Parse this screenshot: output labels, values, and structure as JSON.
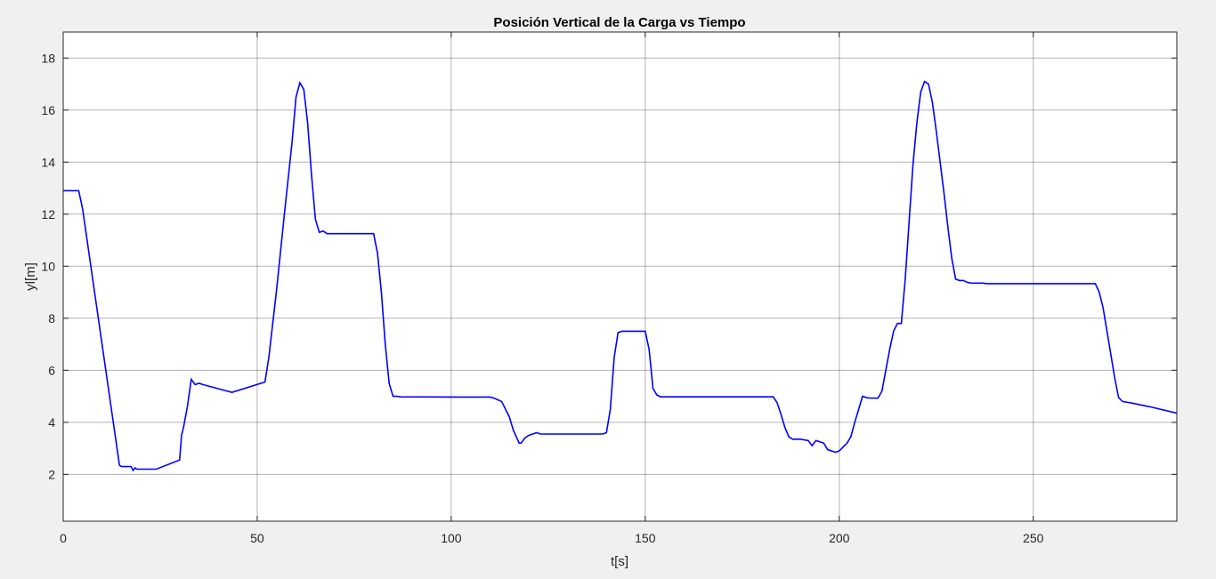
{
  "chart_data": {
    "type": "line",
    "title": "Posición Vertical de la Carga vs Tiempo",
    "xlabel": "t[s]",
    "ylabel": "yl[m]",
    "xlim": [
      0,
      287
    ],
    "ylim": [
      0.2,
      19
    ],
    "grid": true,
    "legend": "none",
    "x_ticks": [
      0,
      50,
      100,
      150,
      200,
      250
    ],
    "y_ticks": [
      2,
      4,
      6,
      8,
      10,
      12,
      14,
      16,
      18
    ],
    "colors": {
      "line": "#0000ff",
      "background": "#f0f0f0",
      "plot_area": "#ffffff",
      "grid": "#262626"
    },
    "series": [
      {
        "x": [
          0,
          4,
          5,
          14.5,
          15,
          17.5,
          18,
          18.5,
          19,
          24,
          30,
          30.5,
          31,
          32,
          33,
          34,
          35,
          36,
          43.5,
          52,
          53,
          55,
          57,
          59,
          60,
          61,
          62,
          63,
          64,
          65,
          66,
          67,
          68,
          70,
          75,
          80,
          81,
          82,
          83,
          84,
          85,
          86,
          87,
          100,
          110,
          111,
          113,
          115,
          116,
          117.5,
          118,
          119,
          120,
          121,
          122,
          123,
          130,
          139,
          140,
          141,
          142,
          143,
          144,
          146,
          150,
          151,
          152,
          153,
          154,
          160,
          170,
          183,
          184,
          185,
          186,
          187,
          188,
          190,
          192,
          193,
          194,
          195,
          196,
          197,
          199,
          200,
          201,
          202,
          203,
          204,
          205,
          206,
          207,
          208,
          209,
          210,
          211,
          212,
          213,
          214,
          215,
          216,
          217,
          218,
          219,
          220,
          221,
          222,
          223,
          224,
          225,
          226,
          227,
          228,
          229,
          230,
          231,
          232,
          233,
          234,
          235,
          236,
          237,
          238,
          240,
          250,
          260,
          266,
          267,
          268,
          269,
          270,
          271,
          272,
          273,
          275,
          280,
          287
        ],
        "y": [
          12.9,
          12.9,
          12.2,
          2.35,
          2.3,
          2.3,
          2.15,
          2.25,
          2.2,
          2.2,
          2.55,
          3.5,
          3.8,
          4.6,
          5.65,
          5.45,
          5.5,
          5.45,
          5.15,
          5.55,
          6.5,
          9.1,
          12.0,
          14.8,
          16.5,
          17.05,
          16.8,
          15.5,
          13.5,
          11.8,
          11.3,
          11.35,
          11.25,
          11.25,
          11.25,
          11.25,
          10.5,
          9.0,
          7.0,
          5.5,
          5.0,
          5.0,
          4.98,
          4.97,
          4.97,
          4.93,
          4.8,
          4.2,
          3.7,
          3.2,
          3.2,
          3.4,
          3.5,
          3.55,
          3.6,
          3.55,
          3.55,
          3.55,
          3.6,
          4.5,
          6.5,
          7.45,
          7.5,
          7.5,
          7.5,
          6.8,
          5.3,
          5.05,
          4.98,
          4.98,
          4.98,
          4.98,
          4.75,
          4.3,
          3.8,
          3.45,
          3.35,
          3.35,
          3.3,
          3.1,
          3.3,
          3.25,
          3.2,
          2.95,
          2.85,
          2.9,
          3.05,
          3.2,
          3.45,
          4.0,
          4.5,
          5.0,
          4.95,
          4.93,
          4.93,
          4.93,
          5.2,
          6.0,
          6.8,
          7.5,
          7.8,
          7.8,
          9.5,
          11.7,
          13.9,
          15.5,
          16.7,
          17.1,
          17.0,
          16.3,
          15.2,
          14.0,
          12.8,
          11.5,
          10.3,
          9.5,
          9.45,
          9.45,
          9.38,
          9.35,
          9.35,
          9.35,
          9.35,
          9.33,
          9.33,
          9.33,
          9.33,
          9.33,
          9.0,
          8.4,
          7.5,
          6.6,
          5.7,
          4.95,
          4.8,
          4.75,
          4.6,
          4.35
        ]
      }
    ]
  }
}
